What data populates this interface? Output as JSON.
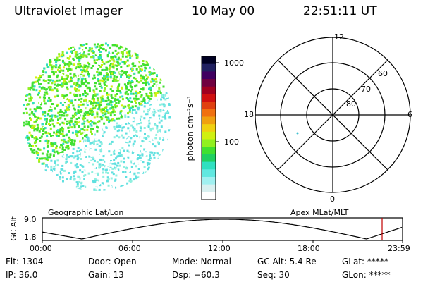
{
  "header": {
    "instrument": "Ultraviolet Imager",
    "date": "10 May 00",
    "time": "22:51:11 UT"
  },
  "colorbar": {
    "unit_label": "photon cm⁻²s⁻¹",
    "ticks": [
      "1000",
      "100"
    ],
    "colors": [
      "#000022",
      "#202060",
      "#400060",
      "#700040",
      "#a00020",
      "#d01010",
      "#e04010",
      "#f07010",
      "#f0a010",
      "#f0d010",
      "#d0f010",
      "#90f020",
      "#40e030",
      "#20d060",
      "#30e0c0",
      "#60e8e0",
      "#a0f0f0",
      "#d8f0f0",
      "#ffffff"
    ]
  },
  "polar": {
    "labels": {
      "top": "12",
      "bottom": "0",
      "left": "18",
      "right": "6"
    },
    "lat_labels": [
      "60",
      "70",
      "80"
    ]
  },
  "timeline": {
    "axis_label": "GC Alt",
    "y_ticks": [
      "9.0",
      "1.8"
    ],
    "left_title": "Geographic Lat/Lon",
    "right_title": "Apex MLat/MLT",
    "x_ticks": [
      "00:00",
      "06:00",
      "12:00",
      "18:00",
      "23:59"
    ],
    "marker_color": "#c00000"
  },
  "info": [
    [
      "Flt: 1304",
      "Door: Open",
      "Mode: Normal",
      "GC Alt: 5.4 Re",
      "GLat: *****"
    ],
    [
      "IP: 36.0",
      "Gain: 13",
      "Dsp:  −60.3",
      "Seq: 30",
      "GLon: *****"
    ]
  ]
}
